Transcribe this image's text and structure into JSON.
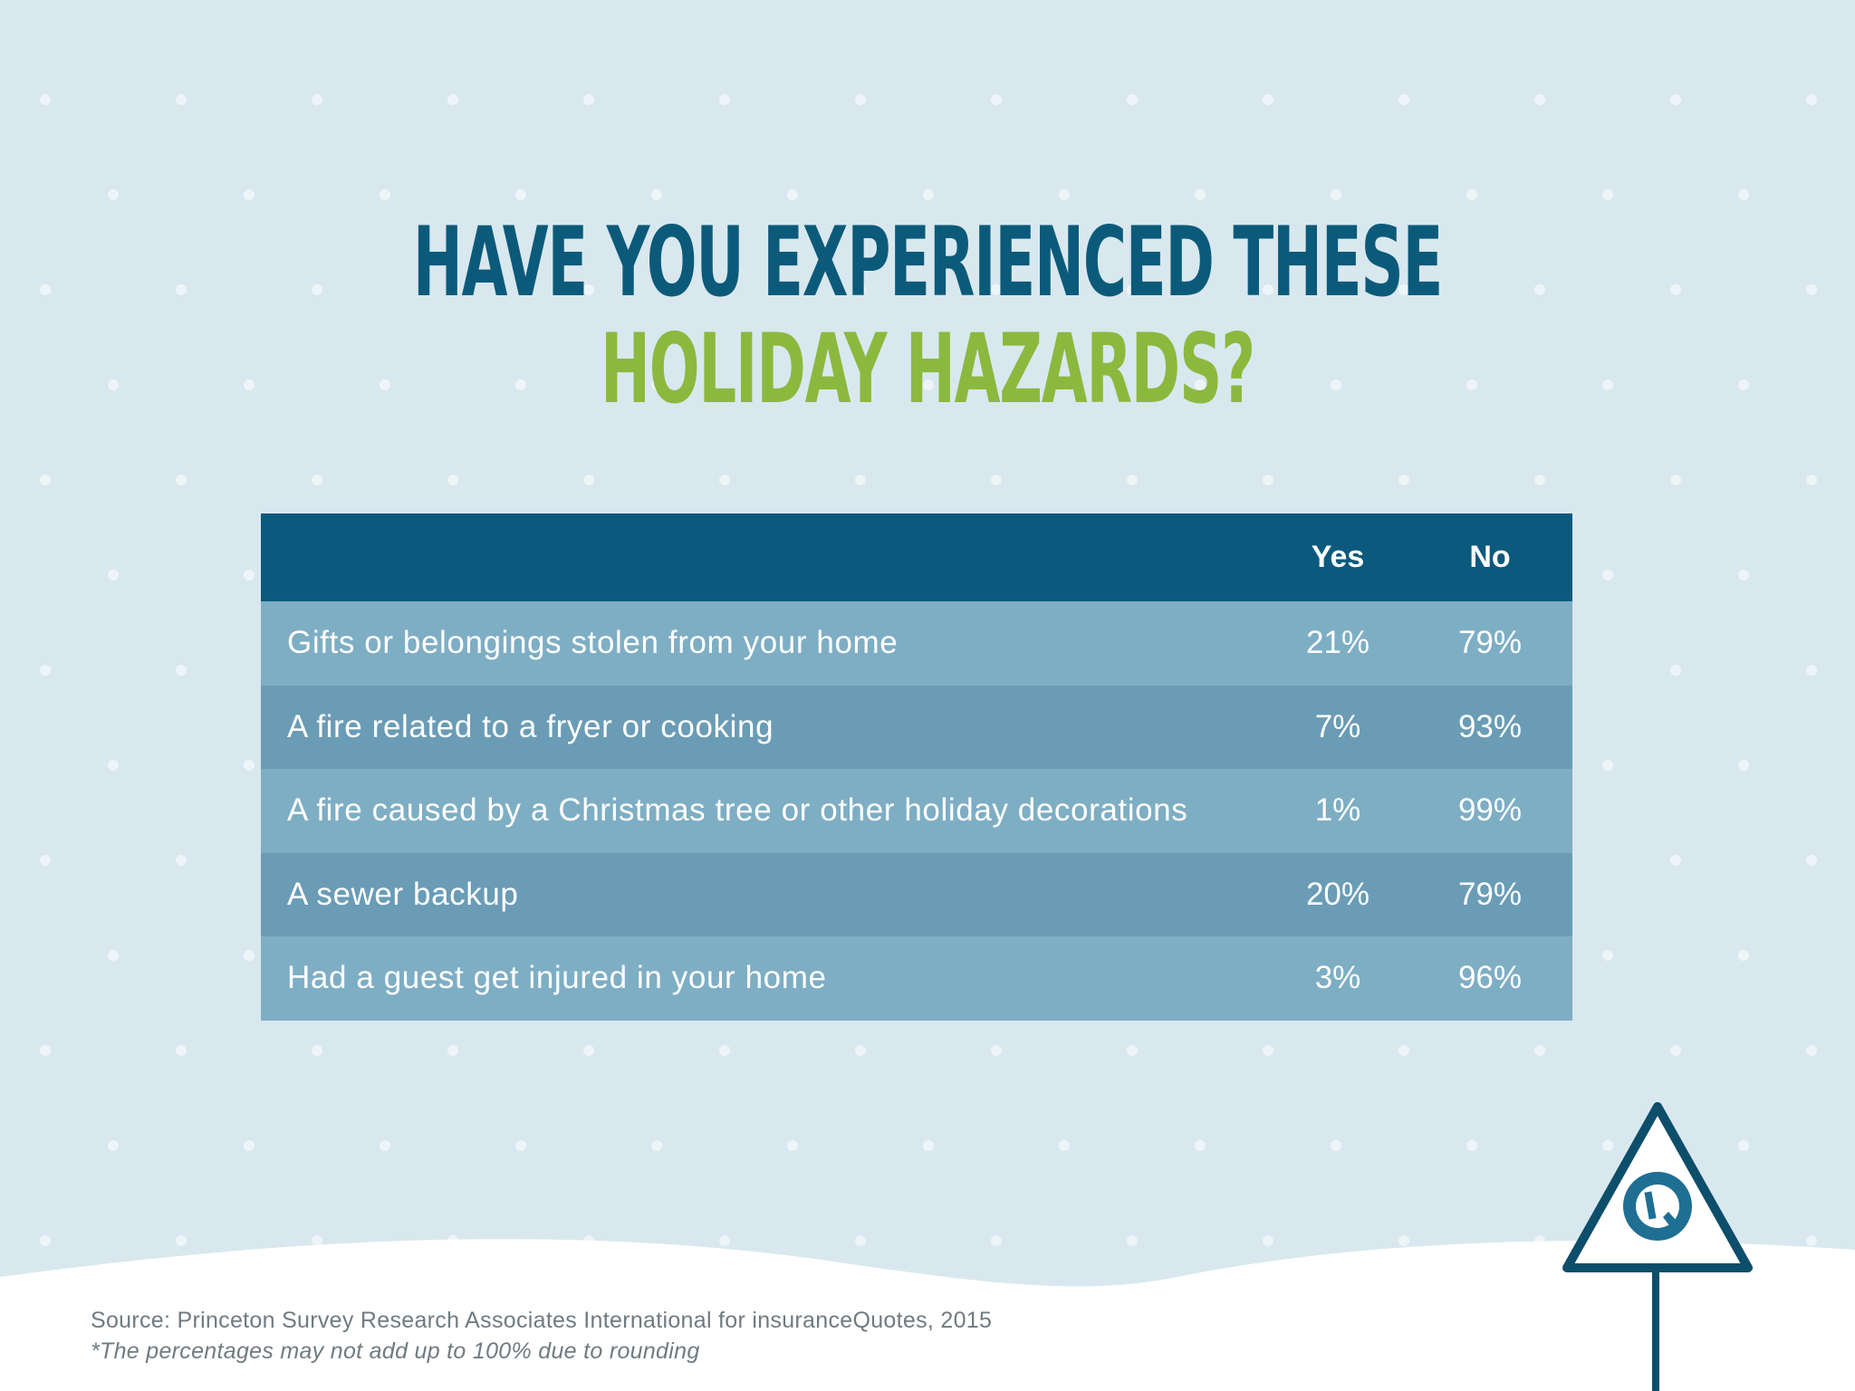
{
  "title": {
    "line1": "HAVE YOU EXPERIENCED THESE",
    "line2": "HOLIDAY HAZARDS?"
  },
  "colors": {
    "background": "#d9e8ef",
    "title_blue": "#0c5a7a",
    "title_green": "#8bb93e",
    "header_bg": "#0b5a7e",
    "row_light": "#7eaec4",
    "row_dark": "#6a9cb6"
  },
  "chart_data": {
    "type": "table",
    "columns": [
      "",
      "Yes",
      "No"
    ],
    "rows": [
      {
        "label": "Gifts or belongings stolen from your home",
        "yes": "21%",
        "no": "79%"
      },
      {
        "label": "A fire related to a fryer or cooking",
        "yes": "7%",
        "no": "93%"
      },
      {
        "label": "A fire caused by a Christmas tree or other holiday decorations",
        "yes": "1%",
        "no": "99%"
      },
      {
        "label": "A sewer backup",
        "yes": "20%",
        "no": "79%"
      },
      {
        "label": "Had a guest get injured in your home",
        "yes": "3%",
        "no": "96%"
      }
    ]
  },
  "footer": {
    "source": "Source: Princeton Survey Research Associates International for insuranceQuotes, 2015",
    "note": "*The percentages may not add up to 100% due to rounding"
  },
  "icons": {
    "sign": "warning-sign-icon",
    "logo": "iq-logo-icon"
  }
}
